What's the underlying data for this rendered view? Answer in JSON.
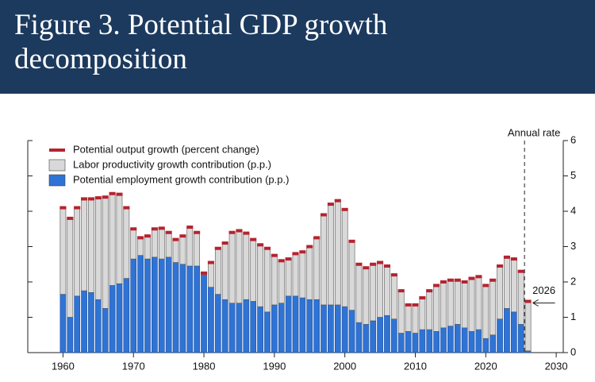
{
  "chart_data": {
    "type": "bar",
    "title": "Figure 3. Potential GDP growth decomposition",
    "annotations": [
      "Annual rate",
      "2026"
    ],
    "x": [
      1960,
      1961,
      1962,
      1963,
      1964,
      1965,
      1966,
      1967,
      1968,
      1969,
      1970,
      1971,
      1972,
      1973,
      1974,
      1975,
      1976,
      1977,
      1978,
      1979,
      1980,
      1981,
      1982,
      1983,
      1984,
      1985,
      1986,
      1987,
      1988,
      1989,
      1990,
      1991,
      1992,
      1993,
      1994,
      1995,
      1996,
      1997,
      1998,
      1999,
      2000,
      2001,
      2002,
      2003,
      2004,
      2005,
      2006,
      2007,
      2008,
      2009,
      2010,
      2011,
      2012,
      2013,
      2014,
      2015,
      2016,
      2017,
      2018,
      2019,
      2020,
      2021,
      2022,
      2023,
      2024,
      2025,
      2026
    ],
    "stacked": true,
    "series": [
      {
        "name": "Potential employment growth contribution (p.p.)",
        "color": "#2f73d4",
        "values": [
          1.65,
          1.0,
          1.6,
          1.75,
          1.7,
          1.5,
          1.25,
          1.9,
          1.95,
          2.1,
          2.65,
          2.75,
          2.65,
          2.7,
          2.65,
          2.7,
          2.55,
          2.5,
          2.45,
          2.45,
          2.2,
          1.85,
          1.65,
          1.5,
          1.4,
          1.4,
          1.5,
          1.45,
          1.3,
          1.15,
          1.35,
          1.4,
          1.6,
          1.6,
          1.55,
          1.5,
          1.5,
          1.35,
          1.35,
          1.35,
          1.3,
          1.2,
          0.85,
          0.8,
          0.9,
          1.0,
          1.05,
          0.95,
          0.55,
          0.6,
          0.55,
          0.65,
          0.65,
          0.6,
          0.7,
          0.75,
          0.8,
          0.7,
          0.6,
          0.65,
          0.4,
          0.5,
          0.95,
          1.25,
          1.15,
          0.8,
          0.05
        ]
      },
      {
        "name": "Labor productivity growth contribution (p.p.)",
        "color": "#d9d9d9",
        "values": [
          2.45,
          2.8,
          2.5,
          2.6,
          2.65,
          2.88,
          3.15,
          2.6,
          2.53,
          2.0,
          0.85,
          0.5,
          0.65,
          0.8,
          0.87,
          0.7,
          0.65,
          0.8,
          1.1,
          0.95,
          0.05,
          0.7,
          1.3,
          1.6,
          2.0,
          2.05,
          1.88,
          1.75,
          1.75,
          1.8,
          1.4,
          1.2,
          1.05,
          1.2,
          1.3,
          1.5,
          1.75,
          2.55,
          2.85,
          2.95,
          2.75,
          1.95,
          1.65,
          1.6,
          1.6,
          1.55,
          1.4,
          1.25,
          1.2,
          0.75,
          0.8,
          0.9,
          1.1,
          1.3,
          1.3,
          1.3,
          1.25,
          1.3,
          1.5,
          1.5,
          1.5,
          1.55,
          1.5,
          1.45,
          1.5,
          1.5,
          1.4
        ]
      },
      {
        "name": "Potential output growth (percent change)",
        "color": "#b5232f",
        "type": "marker",
        "values": [
          4.1,
          3.8,
          4.1,
          4.35,
          4.35,
          4.38,
          4.4,
          4.5,
          4.48,
          4.1,
          3.5,
          3.25,
          3.3,
          3.5,
          3.52,
          3.4,
          3.2,
          3.3,
          3.55,
          3.4,
          2.25,
          2.55,
          2.95,
          3.1,
          3.4,
          3.45,
          3.38,
          3.2,
          3.05,
          2.95,
          2.75,
          2.6,
          2.65,
          2.8,
          2.85,
          3.0,
          3.25,
          3.9,
          4.2,
          4.3,
          4.05,
          3.15,
          2.5,
          2.4,
          2.5,
          2.55,
          2.45,
          2.2,
          1.75,
          1.35,
          1.35,
          1.55,
          1.75,
          1.9,
          2.0,
          2.05,
          2.05,
          2.0,
          2.1,
          2.15,
          1.9,
          2.05,
          2.45,
          2.7,
          2.65,
          2.3,
          1.45
        ]
      }
    ],
    "xlim": [
      1955,
      2031
    ],
    "xticks": [
      1960,
      1970,
      1980,
      1990,
      2000,
      2010,
      2020,
      2030
    ],
    "ylim": [
      0,
      6
    ],
    "yticks": [
      0,
      1,
      2,
      3,
      4,
      5,
      6
    ],
    "legend": "top-left"
  }
}
